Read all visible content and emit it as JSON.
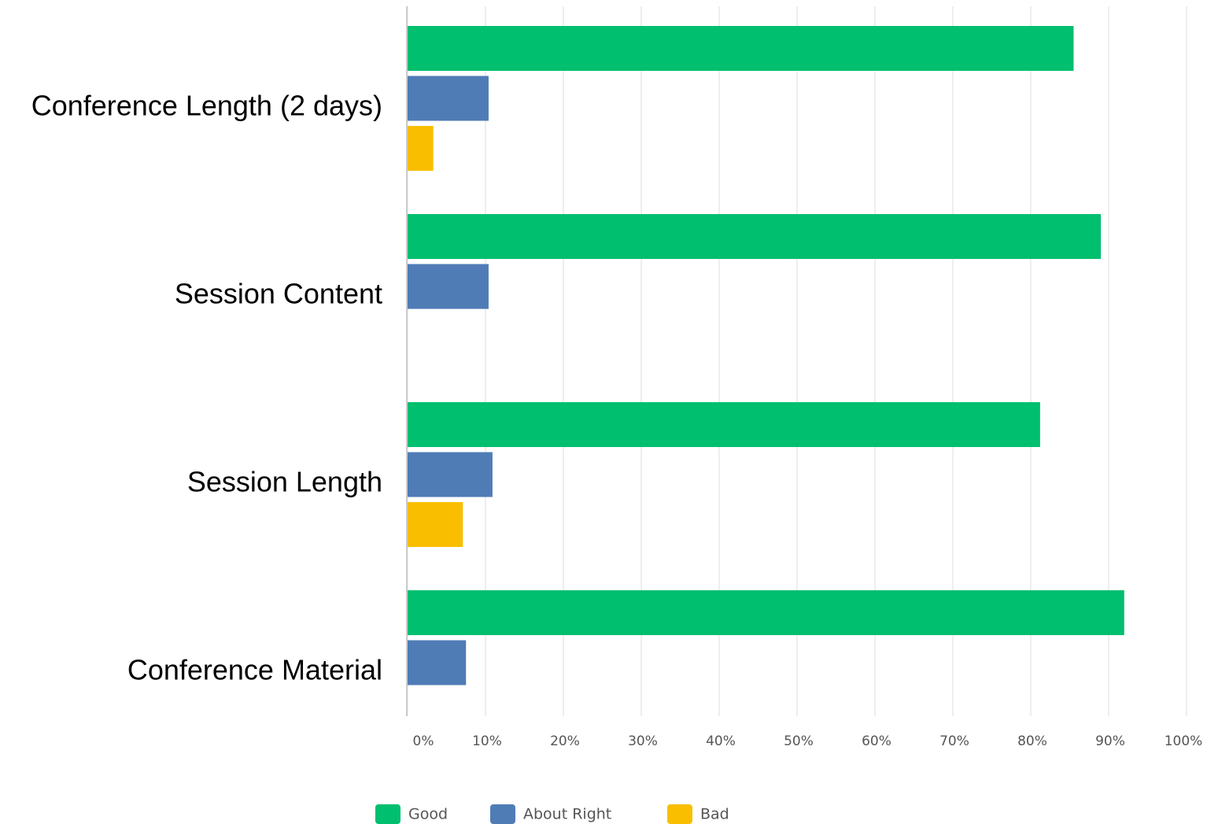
{
  "chart_data": {
    "type": "barh",
    "categories": [
      "Conference Length (2 days)",
      "Session Content",
      "Session Length",
      "Conference Material"
    ],
    "series": [
      {
        "name": "Good",
        "color": "#00bf6f",
        "values": [
          85.5,
          89,
          81.2,
          92
        ]
      },
      {
        "name": "About Right",
        "color": "#507cb6",
        "values": [
          10.4,
          10.4,
          10.9,
          7.5
        ]
      },
      {
        "name": "Bad",
        "color": "#f9be00",
        "values": [
          3.3,
          0,
          7.1,
          0
        ]
      }
    ],
    "xlim": [
      0,
      100
    ],
    "xticks": [
      {
        "value": 0,
        "label": "0%"
      },
      {
        "value": 10,
        "label": "10%"
      },
      {
        "value": 20,
        "label": "20%"
      },
      {
        "value": 30,
        "label": "30%"
      },
      {
        "value": 40,
        "label": "40%"
      },
      {
        "value": 50,
        "label": "50%"
      },
      {
        "value": 60,
        "label": "60%"
      },
      {
        "value": 70,
        "label": "70%"
      },
      {
        "value": 80,
        "label": "80%"
      },
      {
        "value": 90,
        "label": "90%"
      },
      {
        "value": 100,
        "label": "100%"
      }
    ],
    "grid": true,
    "legend": "bottom"
  }
}
